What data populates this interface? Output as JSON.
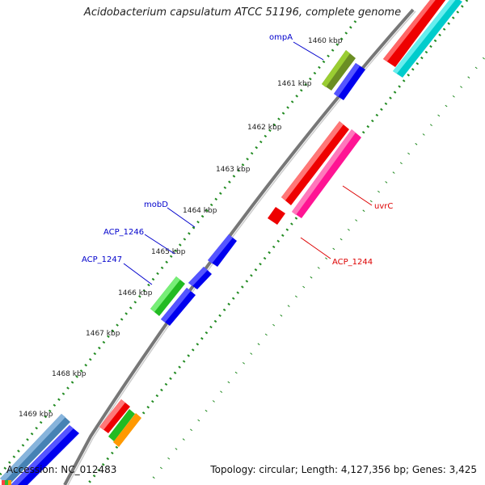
{
  "title": "Acidobacterium capsulatum ATCC 51196, complete genome",
  "footer": {
    "accession": "Accession: NC_012483",
    "summary": "Topology: circular; Length: 4,127,356 bp; Genes: 3,425"
  },
  "ticks": [
    "1460 kbp",
    "1461 kbp",
    "1462 kbp",
    "1463 kbp",
    "1464 kbp",
    "1465 kbp",
    "1466 kbp",
    "1467 kbp",
    "1468 kbp",
    "1469 kbp"
  ],
  "gene_labels": {
    "ompA": "ompA",
    "mobD": "mobD",
    "acp1246": "ACP_1246",
    "acp1247": "ACP_1247",
    "uvrC": "uvrC",
    "acp1244": "ACP_1244"
  },
  "colors": {
    "forward_label": "#0000cc",
    "reverse_label": "#dd0000",
    "forward_cds": "#0000ee",
    "reverse_cds": "#ee0000",
    "tick_dots": "#228B22",
    "backbone": "#888888"
  }
}
